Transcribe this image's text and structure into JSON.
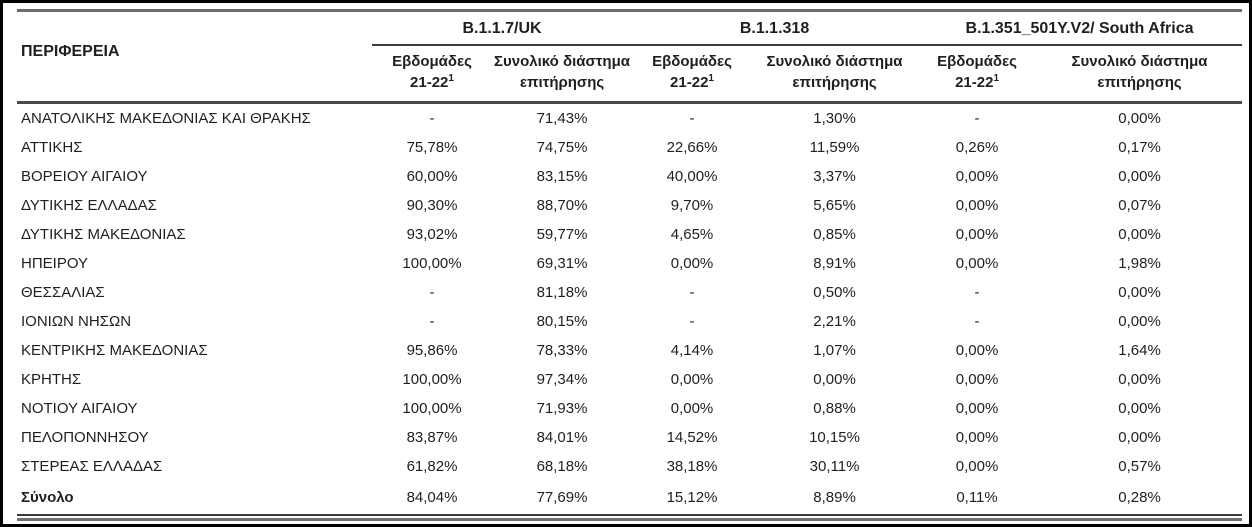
{
  "table": {
    "region_header": "ΠΕΡΙΦΕΡΕΙΑ",
    "groups": [
      {
        "label": "B.1.1.7/UK"
      },
      {
        "label": "B.1.1.318"
      },
      {
        "label": "B.1.351_501Y.V2/ South Africa"
      }
    ],
    "subheaders": [
      {
        "line1": "Εβδομάδες",
        "line2": "21-22",
        "sup": "1"
      },
      {
        "line1": "Συνολικό διάστημα",
        "line2": "επιτήρησης",
        "sup": ""
      },
      {
        "line1": "Εβδομάδες",
        "line2": "21-22",
        "sup": "1"
      },
      {
        "line1": "Συνολικό διάστημα",
        "line2": "επιτήρησης",
        "sup": ""
      },
      {
        "line1": "Εβδομάδες",
        "line2": "21-22",
        "sup": "1"
      },
      {
        "line1": "Συνολικό διάστημα",
        "line2": "επιτήρησης",
        "sup": ""
      }
    ],
    "rows": [
      {
        "region": "ΑΝΑΤΟΛΙΚΗΣ ΜΑΚΕΔΟΝΙΑΣ ΚΑΙ ΘΡΑΚΗΣ",
        "values": [
          "-",
          "71,43%",
          "-",
          "1,30%",
          "-",
          "0,00%"
        ],
        "bold": false
      },
      {
        "region": "ΑΤΤΙΚΗΣ",
        "values": [
          "75,78%",
          "74,75%",
          "22,66%",
          "11,59%",
          "0,26%",
          "0,17%"
        ],
        "bold": false
      },
      {
        "region": "ΒΟΡΕΙΟΥ ΑΙΓΑΙΟΥ",
        "values": [
          "60,00%",
          "83,15%",
          "40,00%",
          "3,37%",
          "0,00%",
          "0,00%"
        ],
        "bold": false
      },
      {
        "region": "ΔΥΤΙΚΗΣ ΕΛΛΑΔΑΣ",
        "values": [
          "90,30%",
          "88,70%",
          "9,70%",
          "5,65%",
          "0,00%",
          "0,07%"
        ],
        "bold": false
      },
      {
        "region": "ΔΥΤΙΚΗΣ ΜΑΚΕΔΟΝΙΑΣ",
        "values": [
          "93,02%",
          "59,77%",
          "4,65%",
          "0,85%",
          "0,00%",
          "0,00%"
        ],
        "bold": false
      },
      {
        "region": "ΗΠΕΙΡΟΥ",
        "values": [
          "100,00%",
          "69,31%",
          "0,00%",
          "8,91%",
          "0,00%",
          "1,98%"
        ],
        "bold": false
      },
      {
        "region": "ΘΕΣΣΑΛΙΑΣ",
        "values": [
          "-",
          "81,18%",
          "-",
          "0,50%",
          "-",
          "0,00%"
        ],
        "bold": false
      },
      {
        "region": "ΙΟΝΙΩΝ ΝΗΣΩΝ",
        "values": [
          "-",
          "80,15%",
          "-",
          "2,21%",
          "-",
          "0,00%"
        ],
        "bold": false
      },
      {
        "region": "ΚΕΝΤΡΙΚΗΣ ΜΑΚΕΔΟΝΙΑΣ",
        "values": [
          "95,86%",
          "78,33%",
          "4,14%",
          "1,07%",
          "0,00%",
          "1,64%"
        ],
        "bold": false
      },
      {
        "region": "ΚΡΗΤΗΣ",
        "values": [
          "100,00%",
          "97,34%",
          "0,00%",
          "0,00%",
          "0,00%",
          "0,00%"
        ],
        "bold": false
      },
      {
        "region": "ΝΟΤΙΟΥ ΑΙΓΑΙΟΥ",
        "values": [
          "100,00%",
          "71,93%",
          "0,00%",
          "0,88%",
          "0,00%",
          "0,00%"
        ],
        "bold": false
      },
      {
        "region": "ΠΕΛΟΠΟΝΝΗΣΟΥ",
        "values": [
          "83,87%",
          "84,01%",
          "14,52%",
          "10,15%",
          "0,00%",
          "0,00%"
        ],
        "bold": false
      },
      {
        "region": "ΣΤΕΡΕΑΣ ΕΛΛΑΔΑΣ",
        "values": [
          "61,82%",
          "68,18%",
          "38,18%",
          "30,11%",
          "0,00%",
          "0,57%"
        ],
        "bold": false
      },
      {
        "region": "Σύνολο",
        "values": [
          "84,04%",
          "77,69%",
          "15,12%",
          "8,89%",
          "0,11%",
          "0,28%"
        ],
        "bold": true
      }
    ],
    "colors": {
      "text": "#1f1f1f",
      "rule_gray": "#6e6e6e",
      "rule_dark": "#3d3d3d",
      "separator": "#4a4a4a",
      "frame": "#000000",
      "background": "#ffffff"
    }
  }
}
